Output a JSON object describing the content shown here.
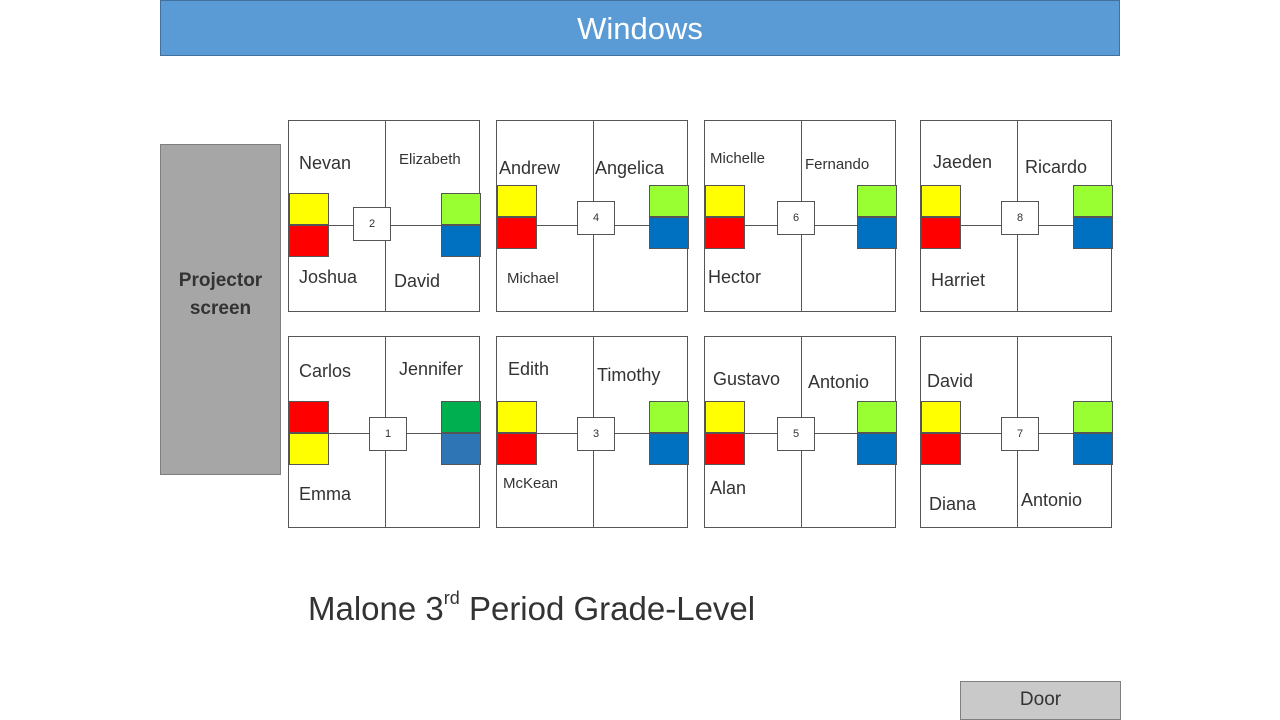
{
  "windows_label": "Windows",
  "projector_label": "Projector\nscreen",
  "door_label": "Door",
  "title": {
    "main": "Malone 3",
    "sup": "rd",
    "rest": " Period Grade-Level"
  },
  "colors": {
    "yellow": "#ffff00",
    "red": "#ff0000",
    "light_green": "#99ff33",
    "green": "#00b050",
    "blue": "#0070c0",
    "steel_blue": "#2e75b6",
    "window_blue": "#5b9bd5",
    "projector_gray": "#a6a6a6"
  },
  "tables": [
    {
      "table_number": "2",
      "top_left": "Nevan",
      "top_right": "Elizabeth",
      "bottom_left": "Joshua",
      "bottom_right": "David"
    },
    {
      "table_number": "4",
      "top_left": "Andrew",
      "top_right": "Angelica",
      "bottom_left": "Michael",
      "bottom_right": ""
    },
    {
      "table_number": "6",
      "top_left": "Michelle",
      "top_right": "Fernando",
      "bottom_left": "Hector",
      "bottom_right": ""
    },
    {
      "table_number": "8",
      "top_left": "Jaeden",
      "top_right": "Ricardo",
      "bottom_left": "Harriet",
      "bottom_right": ""
    },
    {
      "table_number": "1",
      "top_left": "Carlos",
      "top_right": "Jennifer",
      "bottom_left": "Emma",
      "bottom_right": ""
    },
    {
      "table_number": "3",
      "top_left": "Edith",
      "top_right": "Timothy",
      "bottom_left": "McKean",
      "bottom_right": ""
    },
    {
      "table_number": "5",
      "top_left": "Gustavo",
      "top_right": "Antonio",
      "bottom_left": "Alan",
      "bottom_right": ""
    },
    {
      "table_number": "7",
      "top_left": "David",
      "top_right": "",
      "bottom_left": "Diana",
      "bottom_right": "Antonio"
    }
  ]
}
